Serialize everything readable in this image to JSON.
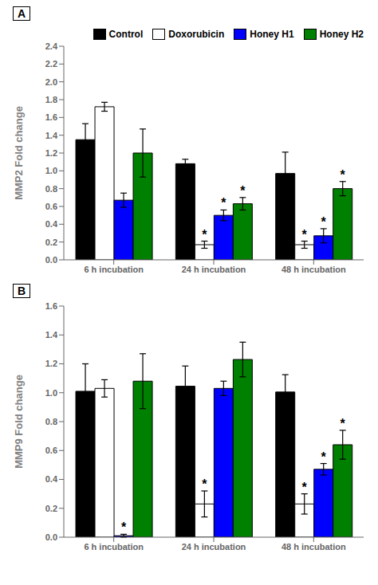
{
  "chart_data": [
    {
      "type": "bar",
      "title": "A",
      "ylabel": "MMP2 Fold change",
      "categories": [
        "6 h incubation",
        "24 h incubation",
        "48 h incubation"
      ],
      "series": [
        {
          "name": "Control",
          "color": "#000000",
          "values": [
            1.35,
            1.08,
            0.97
          ],
          "errors": [
            0.18,
            0.05,
            0.24
          ]
        },
        {
          "name": "Doxorubicin",
          "color": "#ffffff",
          "values": [
            1.72,
            0.17,
            0.17
          ],
          "errors": [
            0.05,
            0.04,
            0.04
          ]
        },
        {
          "name": "Honey H1",
          "color": "#0000ff",
          "values": [
            0.67,
            0.5,
            0.27
          ],
          "errors": [
            0.08,
            0.06,
            0.08
          ]
        },
        {
          "name": "Honey H2",
          "color": "#008000",
          "values": [
            1.2,
            0.63,
            0.8
          ],
          "errors": [
            0.27,
            0.07,
            0.08
          ]
        }
      ],
      "ylim": [
        0.0,
        2.4
      ],
      "yticks": [
        {
          "value": 0.0,
          "label": "0.0"
        },
        0.2,
        0.4,
        0.6,
        0.8,
        {
          "value": 1.0,
          "label": "1.0"
        },
        1.2,
        1.4,
        1.6,
        1.8,
        {
          "value": 2.0,
          "label": "2.0"
        },
        2.2,
        2.4
      ],
      "legend": "upper right",
      "annotations": [
        {
          "text": "*",
          "series": "Doxorubicin",
          "category": "24 h incubation"
        },
        {
          "text": "*",
          "series": "Doxorubicin",
          "category": "48 h incubation"
        },
        {
          "text": "*",
          "series": "Honey H1",
          "category": "24 h incubation"
        },
        {
          "text": "*",
          "series": "Honey H1",
          "category": "48 h incubation"
        },
        {
          "text": "*",
          "series": "Honey H2",
          "category": "24 h incubation"
        },
        {
          "text": "*",
          "series": "Honey H2",
          "category": "48 h incubation"
        }
      ]
    },
    {
      "type": "bar",
      "title": "B",
      "ylabel": "MMP9 Fold change",
      "categories": [
        "6 h incubation",
        "24 h incubation",
        "48 h incubation"
      ],
      "series": [
        {
          "name": "Control",
          "color": "#000000",
          "values": [
            1.01,
            1.045,
            1.005
          ],
          "errors": [
            0.19,
            0.14,
            0.12
          ]
        },
        {
          "name": "Doxorubicin",
          "color": "#ffffff",
          "values": [
            1.03,
            0.23,
            0.23
          ],
          "errors": [
            0.06,
            0.09,
            0.07
          ]
        },
        {
          "name": "Honey H1",
          "color": "#0000ff",
          "values": [
            0.01,
            1.03,
            0.47
          ],
          "errors": [
            0.01,
            0.05,
            0.04
          ]
        },
        {
          "name": "Honey H2",
          "color": "#008000",
          "values": [
            1.08,
            1.23,
            0.64
          ],
          "errors": [
            0.19,
            0.12,
            0.1
          ]
        }
      ],
      "ylim": [
        0.0,
        1.6
      ],
      "yticks": [
        {
          "value": 0.0,
          "label": "0.0"
        },
        0.2,
        0.4,
        0.6,
        0.8,
        {
          "value": 1.0,
          "label": "1.0"
        },
        1.2,
        1.4,
        1.6
      ],
      "annotations": [
        {
          "text": "*",
          "series": "Doxorubicin",
          "category": "24 h incubation"
        },
        {
          "text": "*",
          "series": "Doxorubicin",
          "category": "48 h incubation"
        },
        {
          "text": "*",
          "series": "Honey H1",
          "category": "6 h incubation"
        },
        {
          "text": "*",
          "series": "Honey H1",
          "category": "48 h incubation"
        },
        {
          "text": "*",
          "series": "Honey H2",
          "category": "48 h incubation"
        }
      ]
    }
  ]
}
